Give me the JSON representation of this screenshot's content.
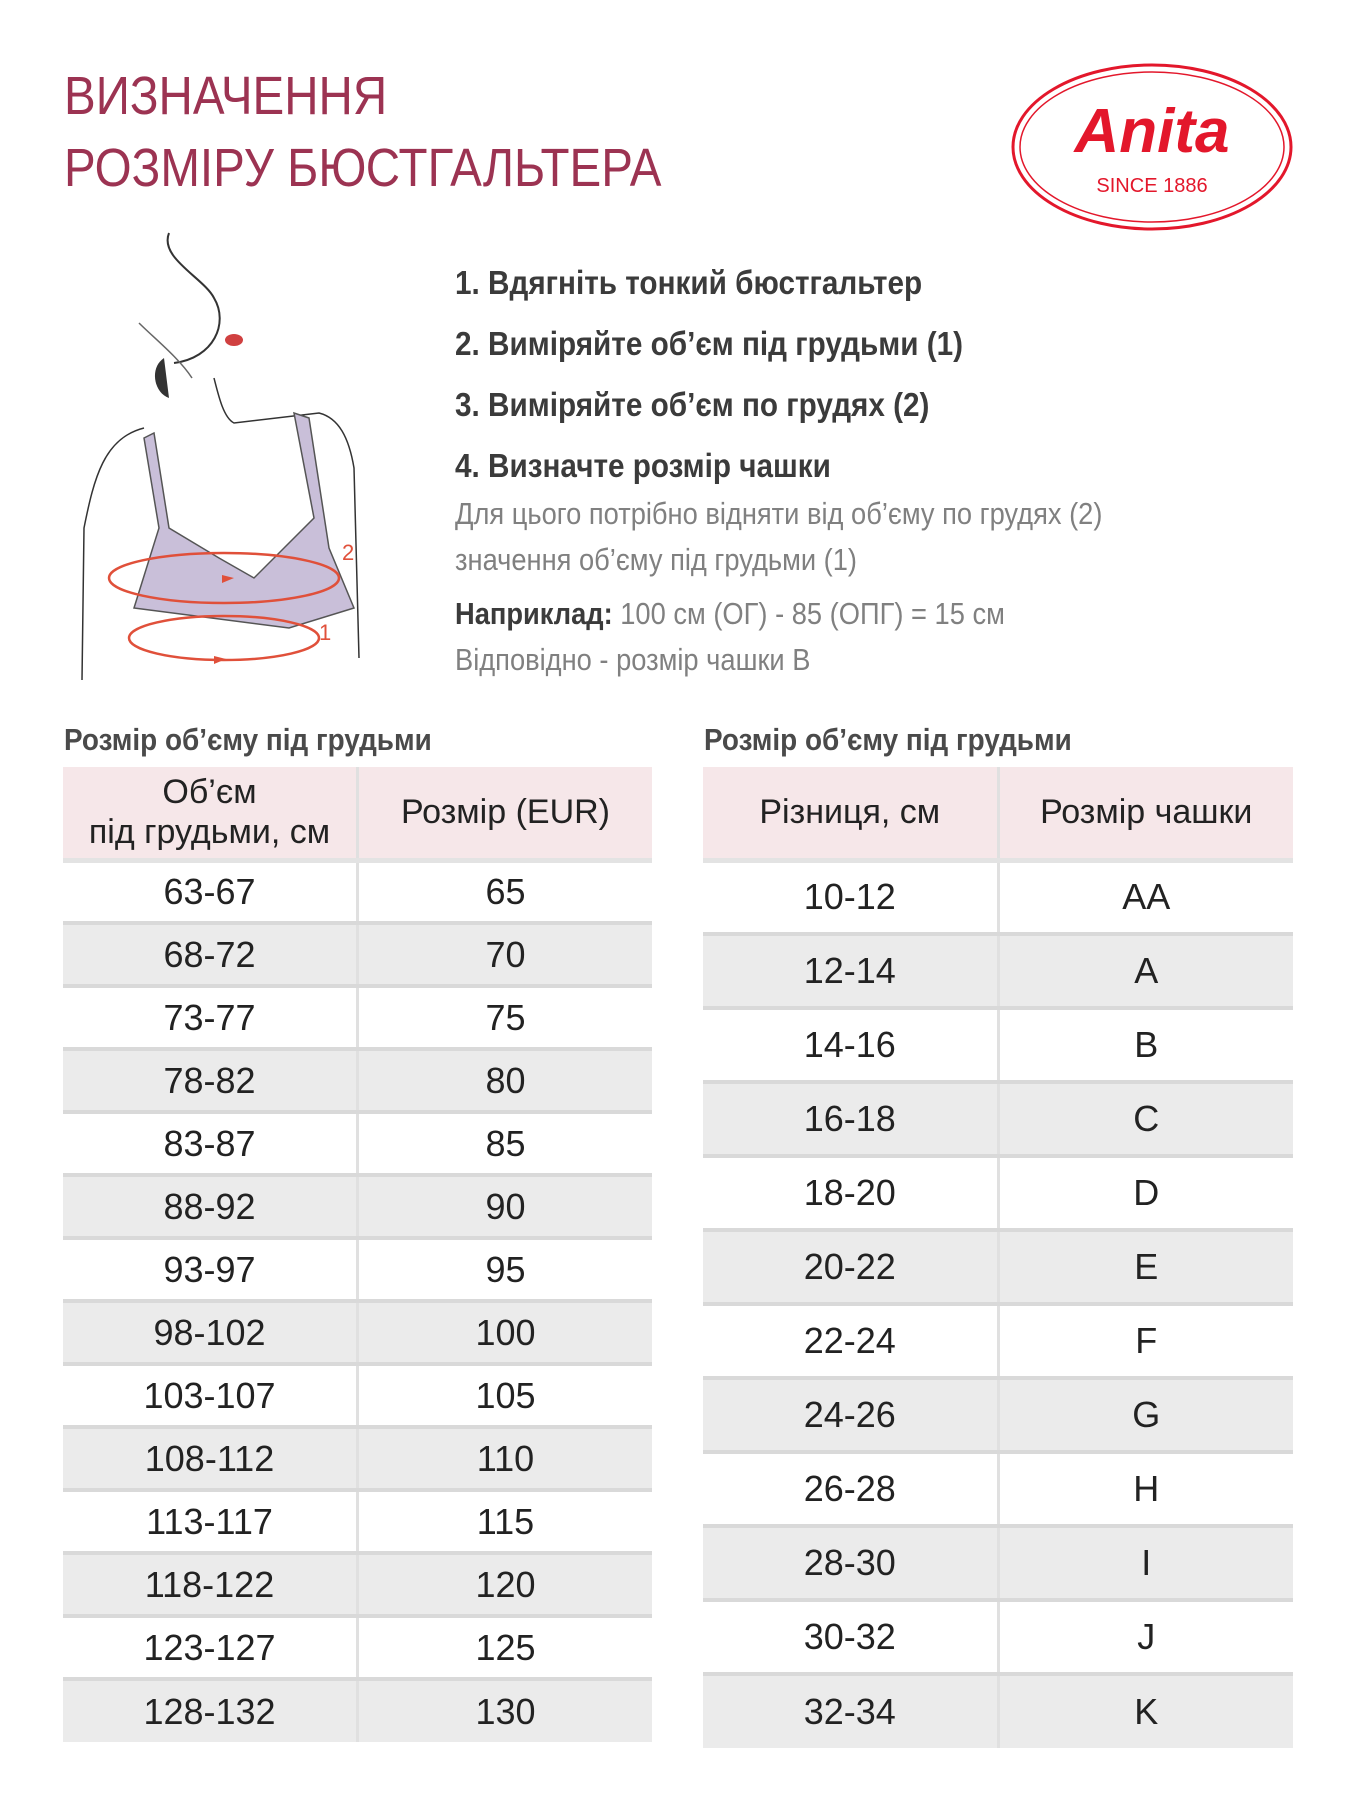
{
  "header": {
    "title_line1": "ВИЗНАЧЕННЯ",
    "title_line2": "РОЗМІРУ БЮСТГАЛЬТЕРА"
  },
  "logo": {
    "brand": "Anita",
    "tagline": "SINCE 1886",
    "color": "#e3172b"
  },
  "illustration": {
    "label_chest": "2",
    "label_underbust": "1"
  },
  "instructions": {
    "steps": [
      "1. Вдягніть тонкий бюстгальтер",
      "2. Виміряйте об’єм під грудьми (1)",
      "3. Виміряйте об’єм по грудях (2)",
      "4. Визначте розмір чашки"
    ],
    "note_line1": "Для цього потрібно відняти від об’єму по грудях (2)",
    "note_line2": "значення об’єму під грудьми (1)",
    "example_label": "Наприклад:",
    "example_text": " 100 см (ОГ) - 85 (ОПГ) = 15 см",
    "result": "Відповідно - розмір чашки B"
  },
  "band_table": {
    "title": "Розмір об’єму під грудьми",
    "headers": [
      "Об’єм",
      "під грудьми, см",
      "Розмір (EUR)"
    ],
    "rows": [
      [
        "63-67",
        "65"
      ],
      [
        "68-72",
        "70"
      ],
      [
        "73-77",
        "75"
      ],
      [
        "78-82",
        "80"
      ],
      [
        "83-87",
        "85"
      ],
      [
        "88-92",
        "90"
      ],
      [
        "93-97",
        "95"
      ],
      [
        "98-102",
        "100"
      ],
      [
        "103-107",
        "105"
      ],
      [
        "108-112",
        "110"
      ],
      [
        "113-117",
        "115"
      ],
      [
        "118-122",
        "120"
      ],
      [
        "123-127",
        "125"
      ],
      [
        "128-132",
        "130"
      ]
    ]
  },
  "cup_table": {
    "title": "Розмір об’єму під грудьми",
    "headers": [
      "Різниця, см",
      "Розмір чашки"
    ],
    "rows": [
      [
        "10-12",
        "AA"
      ],
      [
        "12-14",
        "A"
      ],
      [
        "14-16",
        "B"
      ],
      [
        "16-18",
        "C"
      ],
      [
        "18-20",
        "D"
      ],
      [
        "20-22",
        "E"
      ],
      [
        "22-24",
        "F"
      ],
      [
        "24-26",
        "G"
      ],
      [
        "26-28",
        "H"
      ],
      [
        "28-30",
        "I"
      ],
      [
        "30-32",
        "J"
      ],
      [
        "32-34",
        "K"
      ]
    ]
  },
  "colors": {
    "title": "#9c3352",
    "header_fill": "#f6e7e9",
    "stripe": "#ebebeb",
    "bra": "#c9bfd9",
    "arrow": "#e0503a"
  }
}
